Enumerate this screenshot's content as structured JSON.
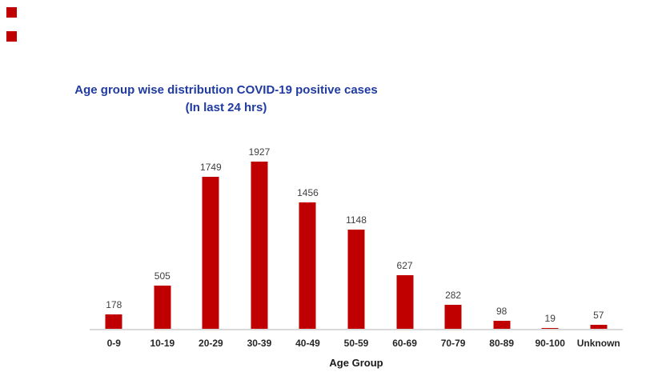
{
  "page": {
    "background": "#FFFFFF"
  },
  "decorations": {
    "marker_color": "#C00000",
    "markers": [
      "red-square-top-left-1",
      "red-square-top-left-2"
    ]
  },
  "chart_data": {
    "type": "bar",
    "title": "Age group wise distribution COVID-19 positive cases",
    "subtitle": "(In last 24 hrs)",
    "xlabel": "Age Group",
    "ylabel": "",
    "categories": [
      "0-9",
      "10-19",
      "20-29",
      "30-39",
      "40-49",
      "50-59",
      "60-69",
      "70-79",
      "80-89",
      "90-100",
      "Unknown"
    ],
    "values": [
      178,
      505,
      1749,
      1927,
      1456,
      1148,
      627,
      282,
      98,
      19,
      57
    ],
    "value_labels_shown": true,
    "y_axis_visible": false,
    "gridlines": false,
    "legend": "none",
    "ylim": [
      0,
      2000
    ],
    "bar_color": "#C00000",
    "title_color": "#1F3AA0",
    "value_label_color": "#404040",
    "tick_label_color": "#262626",
    "baseline_color": "#D9D9D9"
  }
}
